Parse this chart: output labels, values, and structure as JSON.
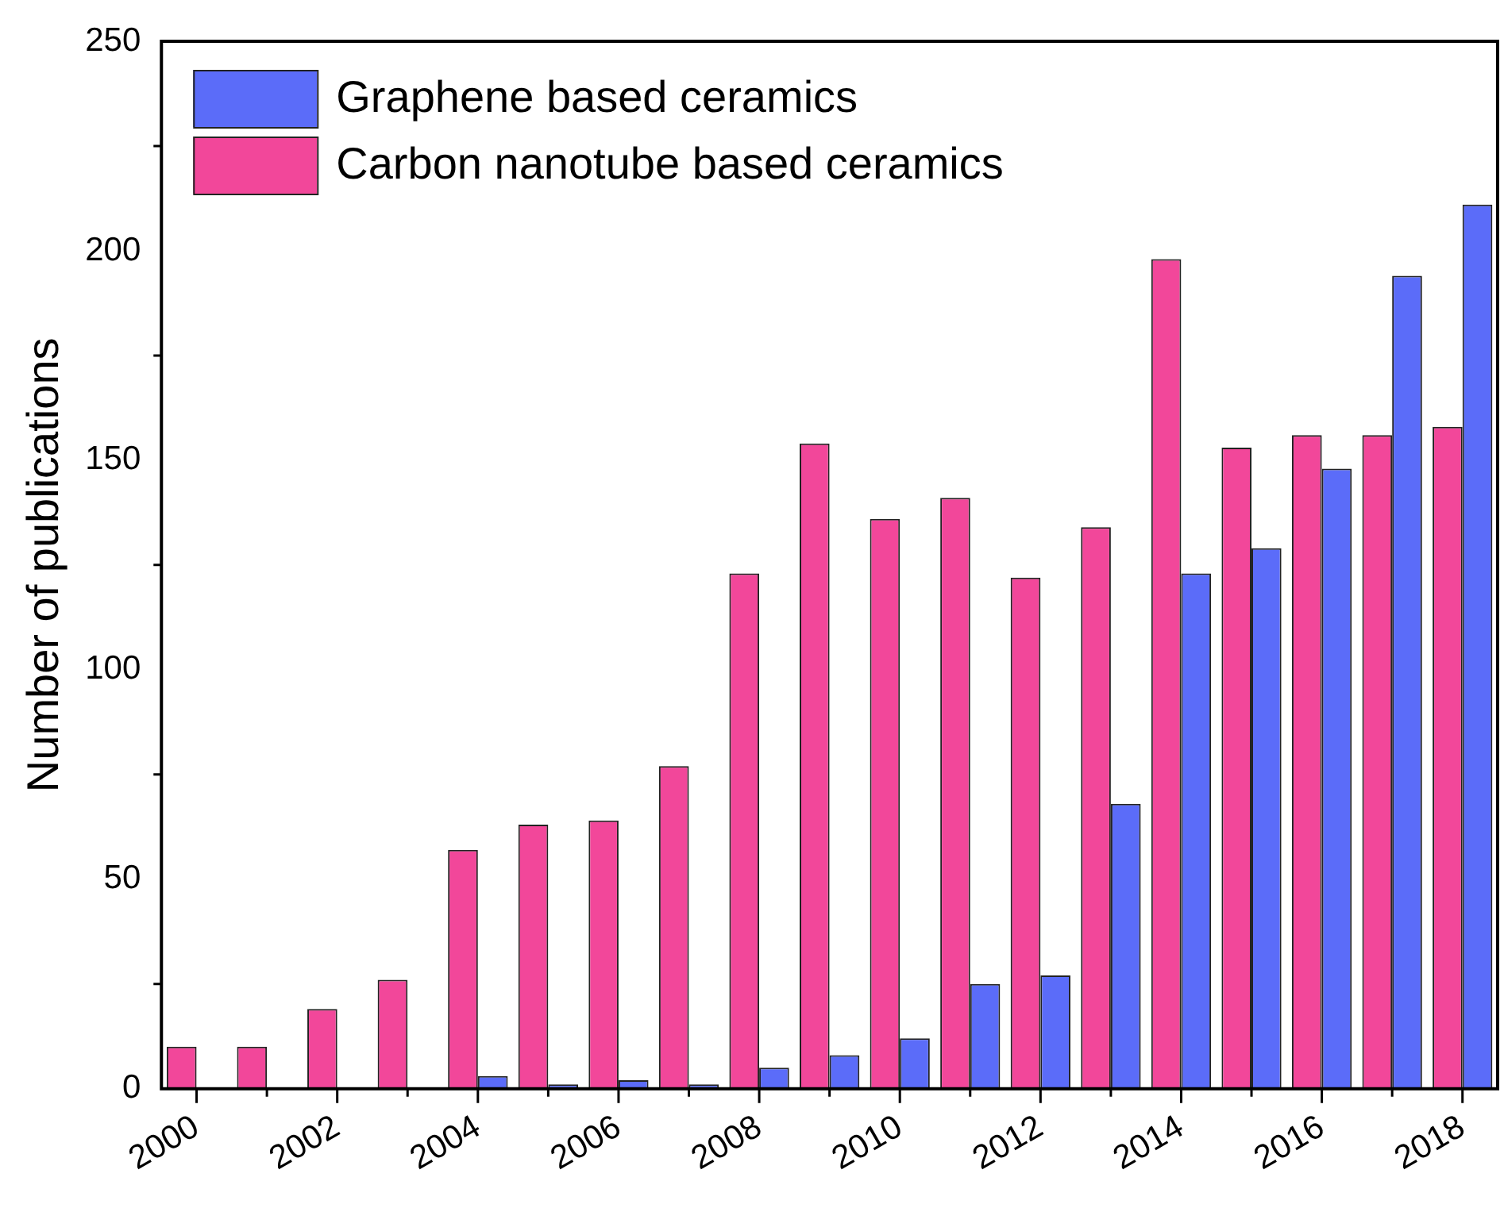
{
  "chart_data": {
    "type": "bar",
    "ylabel": "Number of publications",
    "categories": [
      "2000",
      null,
      "2002",
      null,
      "2004",
      null,
      "2006",
      null,
      "2008",
      null,
      "2010",
      null,
      "2012",
      null,
      "2014",
      null,
      "2016",
      null,
      "2018"
    ],
    "series": [
      {
        "name": "Graphene based ceramics",
        "color": "#5b6cf9",
        "values": [
          0,
          0,
          0,
          0,
          3,
          1,
          2,
          1,
          5,
          8,
          12,
          25,
          27,
          68,
          123,
          129,
          148,
          194,
          211
        ]
      },
      {
        "name": "Carbon nanotube based ceramics",
        "color": "#f2479a",
        "values": [
          10,
          10,
          19,
          26,
          57,
          63,
          64,
          77,
          123,
          154,
          136,
          141,
          122,
          134,
          198,
          153,
          156,
          156,
          158
        ]
      }
    ],
    "ylim": [
      0,
      250
    ],
    "yticks": [
      0,
      50,
      100,
      150,
      200,
      250
    ],
    "grid": false,
    "legend": "top left"
  }
}
